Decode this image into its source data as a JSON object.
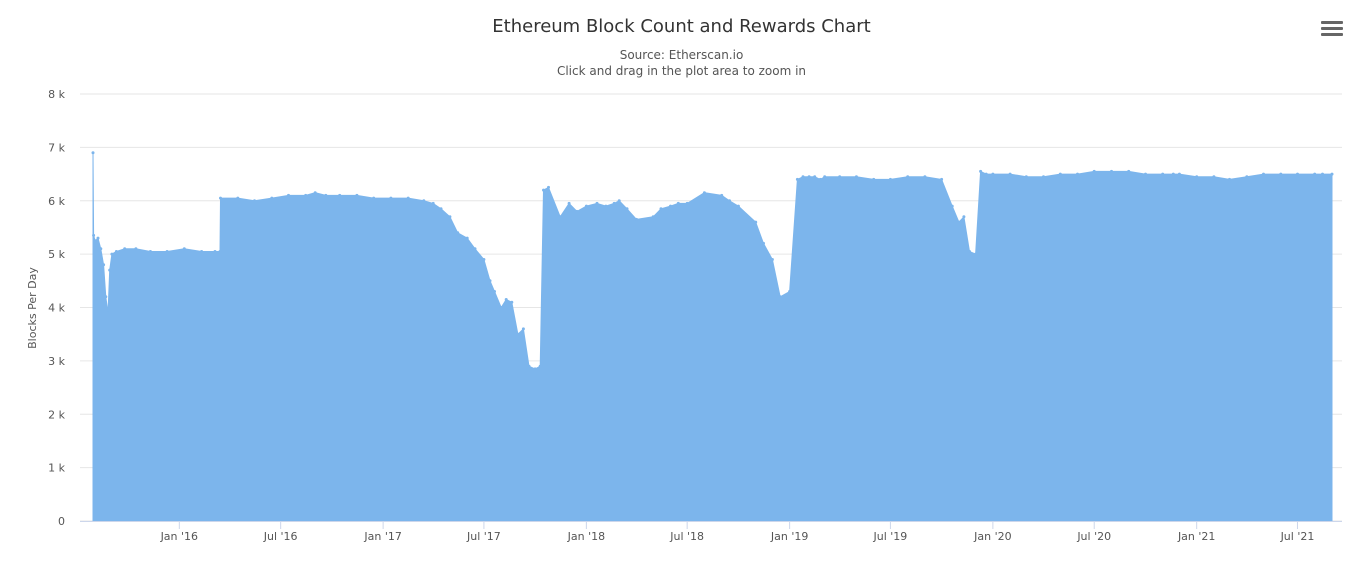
{
  "chart_data": {
    "type": "area",
    "title": "Ethereum Block Count and Rewards Chart",
    "subtitle_source": "Source: Etherscan.io",
    "subtitle_hint": "Click and drag in the plot area to zoom in",
    "ylabel": "Blocks Per Day",
    "xlabel": "",
    "ylim": [
      0,
      8000
    ],
    "xlim": [
      "2015-07-30",
      "2021-09-01"
    ],
    "grid": true,
    "legend": "none",
    "color": "#7cb5ec",
    "y_ticks": [
      {
        "value": 0,
        "label": "0"
      },
      {
        "value": 1000,
        "label": "1 k"
      },
      {
        "value": 2000,
        "label": "2 k"
      },
      {
        "value": 3000,
        "label": "3 k"
      },
      {
        "value": 4000,
        "label": "4 k"
      },
      {
        "value": 5000,
        "label": "5 k"
      },
      {
        "value": 6000,
        "label": "6 k"
      },
      {
        "value": 7000,
        "label": "7 k"
      },
      {
        "value": 8000,
        "label": "8 k"
      }
    ],
    "x_ticks": [
      {
        "date": "2016-01-01",
        "label": "Jan '16"
      },
      {
        "date": "2016-07-01",
        "label": "Jul '16"
      },
      {
        "date": "2017-01-01",
        "label": "Jan '17"
      },
      {
        "date": "2017-07-01",
        "label": "Jul '17"
      },
      {
        "date": "2018-01-01",
        "label": "Jan '18"
      },
      {
        "date": "2018-07-01",
        "label": "Jul '18"
      },
      {
        "date": "2019-01-01",
        "label": "Jan '19"
      },
      {
        "date": "2019-07-01",
        "label": "Jul '19"
      },
      {
        "date": "2020-01-01",
        "label": "Jan '20"
      },
      {
        "date": "2020-07-01",
        "label": "Jul '20"
      },
      {
        "date": "2021-01-01",
        "label": "Jan '21"
      },
      {
        "date": "2021-07-01",
        "label": "Jul '21"
      }
    ],
    "series": [
      {
        "x": [
          "2015-07-30",
          "2015-07-31",
          "2015-08-03",
          "2015-08-08",
          "2015-08-13",
          "2015-08-18",
          "2015-08-22",
          "2015-08-26",
          "2015-08-29",
          "2015-09-02",
          "2015-09-10",
          "2015-09-25",
          "2015-10-15",
          "2015-11-10",
          "2015-12-10",
          "2016-01-10",
          "2016-02-10",
          "2016-03-05",
          "2016-03-14",
          "2016-03-15",
          "2016-04-15",
          "2016-05-15",
          "2016-06-15",
          "2016-07-15",
          "2016-08-15",
          "2016-09-01",
          "2016-09-20",
          "2016-10-15",
          "2016-11-15",
          "2016-12-15",
          "2017-01-15",
          "2017-02-15",
          "2017-03-15",
          "2017-04-01",
          "2017-04-15",
          "2017-05-01",
          "2017-05-15",
          "2017-06-01",
          "2017-06-15",
          "2017-07-01",
          "2017-07-12",
          "2017-07-20",
          "2017-08-01",
          "2017-08-10",
          "2017-08-20",
          "2017-08-31",
          "2017-09-10",
          "2017-09-20",
          "2017-10-01",
          "2017-10-10",
          "2017-10-16",
          "2017-10-25",
          "2017-11-15",
          "2017-12-01",
          "2017-12-15",
          "2018-01-01",
          "2018-01-20",
          "2018-02-05",
          "2018-02-20",
          "2018-03-01",
          "2018-03-15",
          "2018-04-01",
          "2018-05-01",
          "2018-05-15",
          "2018-06-01",
          "2018-06-15",
          "2018-07-01",
          "2018-08-01",
          "2018-09-01",
          "2018-09-15",
          "2018-10-01",
          "2018-11-01",
          "2018-11-15",
          "2018-12-01",
          "2018-12-15",
          "2019-01-01",
          "2019-01-15",
          "2019-01-25",
          "2019-02-05",
          "2019-02-15",
          "2019-02-25",
          "2019-03-05",
          "2019-04-01",
          "2019-05-01",
          "2019-06-01",
          "2019-07-01",
          "2019-08-01",
          "2019-09-01",
          "2019-10-01",
          "2019-10-20",
          "2019-11-01",
          "2019-11-10",
          "2019-11-20",
          "2019-12-01",
          "2019-12-10",
          "2019-12-20",
          "2020-01-01",
          "2020-02-01",
          "2020-03-01",
          "2020-04-01",
          "2020-05-01",
          "2020-06-01",
          "2020-07-01",
          "2020-08-01",
          "2020-09-01",
          "2020-10-01",
          "2020-11-01",
          "2020-11-20",
          "2020-12-01",
          "2021-01-01",
          "2021-02-01",
          "2021-03-01",
          "2021-04-01",
          "2021-05-01",
          "2021-06-01",
          "2021-07-01",
          "2021-08-01",
          "2021-08-15",
          "2021-09-01"
        ],
        "y": [
          6900,
          5350,
          5250,
          5300,
          5100,
          4800,
          4200,
          3900,
          4700,
          5000,
          5050,
          5100,
          5100,
          5050,
          5050,
          5100,
          5050,
          5050,
          5050,
          6050,
          6050,
          6000,
          6050,
          6100,
          6100,
          6150,
          6100,
          6100,
          6100,
          6050,
          6050,
          6050,
          6000,
          5950,
          5850,
          5700,
          5400,
          5300,
          5100,
          4900,
          4500,
          4300,
          4000,
          4150,
          4100,
          3500,
          3600,
          2900,
          2850,
          2900,
          6200,
          6250,
          5700,
          5950,
          5800,
          5900,
          5950,
          5900,
          5950,
          6000,
          5850,
          5650,
          5700,
          5850,
          5900,
          5950,
          5950,
          6150,
          6100,
          6000,
          5900,
          5600,
          5200,
          4900,
          4200,
          4300,
          6400,
          6450,
          6450,
          6450,
          6400,
          6450,
          6450,
          6450,
          6400,
          6400,
          6450,
          6450,
          6400,
          5900,
          5600,
          5700,
          5050,
          5000,
          6550,
          6500,
          6500,
          6500,
          6450,
          6450,
          6500,
          6500,
          6550,
          6550,
          6550,
          6500,
          6500,
          6500,
          6500,
          6450,
          6450,
          6400,
          6450,
          6500,
          6500,
          6500,
          6500,
          6500,
          6500
        ]
      }
    ]
  }
}
